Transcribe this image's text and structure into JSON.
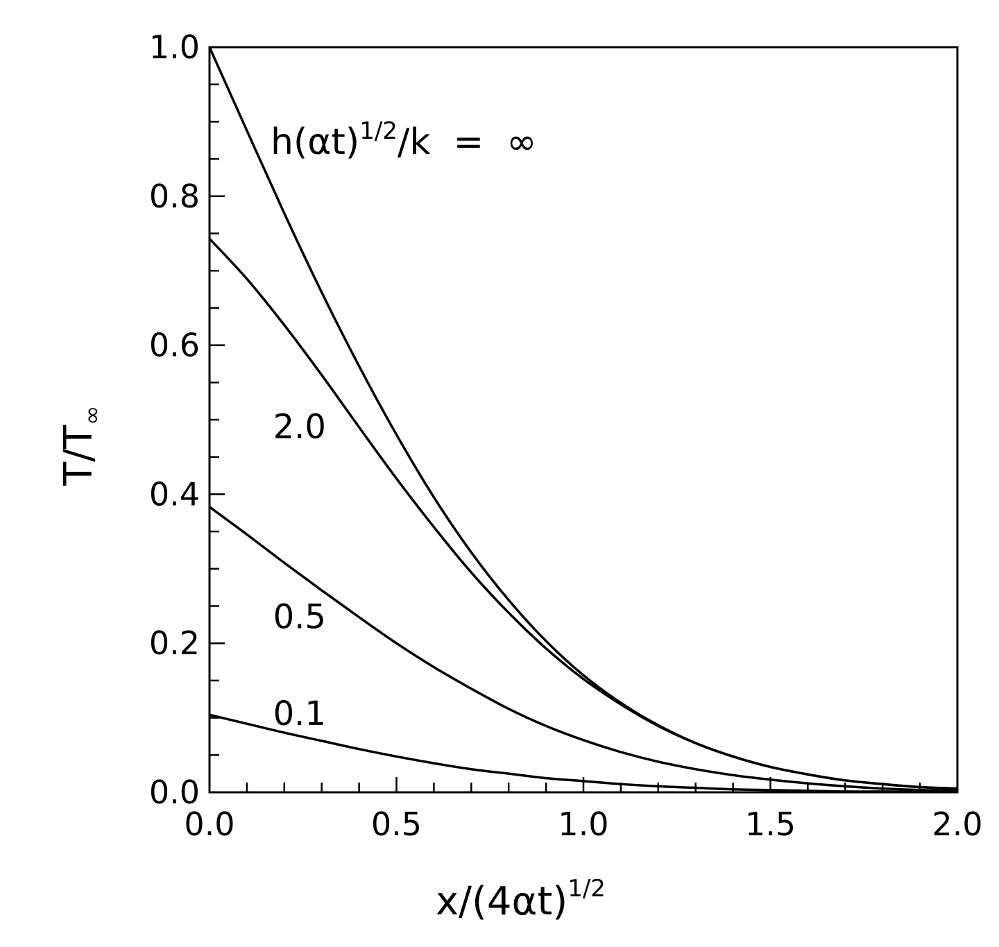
{
  "chart_data": {
    "type": "line",
    "xlabel": {
      "base": "x/(4αt)",
      "sup": "1/2"
    },
    "ylabel": {
      "base": "T/T",
      "sub": "∞"
    },
    "xlim": [
      0.0,
      2.0
    ],
    "ylim": [
      0.0,
      1.0
    ],
    "x_ticks": [
      "0.0",
      "0.5",
      "1.0",
      "1.5",
      "2.0"
    ],
    "y_ticks": [
      "0.0",
      "0.2",
      "0.4",
      "0.6",
      "0.8",
      "1.0"
    ],
    "parameter_label": {
      "base": "h(αt)",
      "sup": "1/2",
      "rest": "/k  =  ∞"
    },
    "grid": false,
    "x": [
      0.0,
      0.1,
      0.2,
      0.3,
      0.4,
      0.5,
      0.6,
      0.7,
      0.8,
      0.9,
      1.0,
      1.1,
      1.2,
      1.3,
      1.4,
      1.5,
      1.6,
      1.7,
      1.8,
      1.9,
      2.0
    ],
    "series": [
      {
        "name": "∞",
        "values": [
          1.0,
          0.888,
          0.777,
          0.671,
          0.572,
          0.48,
          0.396,
          0.322,
          0.258,
          0.203,
          0.157,
          0.12,
          0.09,
          0.066,
          0.048,
          0.034,
          0.024,
          0.016,
          0.011,
          0.007,
          0.005
        ]
      },
      {
        "name": "2.0",
        "values": [
          0.743,
          0.689,
          0.627,
          0.56,
          0.49,
          0.421,
          0.356,
          0.295,
          0.241,
          0.193,
          0.152,
          0.118,
          0.089,
          0.066,
          0.048,
          0.034,
          0.024,
          0.016,
          0.011,
          0.007,
          0.005
        ]
      },
      {
        "name": "0.5",
        "values": [
          0.383,
          0.346,
          0.308,
          0.271,
          0.235,
          0.2,
          0.168,
          0.139,
          0.112,
          0.089,
          0.07,
          0.054,
          0.041,
          0.031,
          0.023,
          0.017,
          0.012,
          0.008,
          0.005,
          0.003,
          0.002
        ]
      },
      {
        "name": "0.1",
        "values": [
          0.104,
          0.092,
          0.08,
          0.069,
          0.058,
          0.048,
          0.039,
          0.031,
          0.025,
          0.019,
          0.015,
          0.011,
          0.008,
          0.006,
          0.004,
          0.003,
          0.002,
          0.001,
          0.001,
          0.0005,
          0.0003
        ]
      }
    ],
    "curve_labels": [
      {
        "text": "2.0",
        "x": 0.17,
        "y": 0.49
      },
      {
        "text": "0.5",
        "x": 0.17,
        "y": 0.235
      },
      {
        "text": "0.1",
        "x": 0.17,
        "y": 0.105
      }
    ]
  }
}
